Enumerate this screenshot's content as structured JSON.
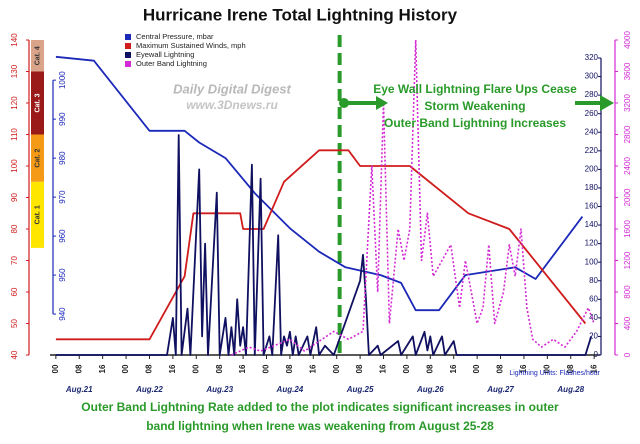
{
  "chart_data": {
    "type": "line",
    "title": "Hurricane Irene Total Lightning History",
    "xlim": [
      -2,
      186
    ],
    "xticks": [
      {
        "value": 0,
        "label": "00"
      },
      {
        "value": 8,
        "label": "08"
      },
      {
        "value": 16,
        "label": "16"
      },
      {
        "value": 24,
        "label": "00"
      },
      {
        "value": 32,
        "label": "08"
      },
      {
        "value": 40,
        "label": "16"
      },
      {
        "value": 48,
        "label": "00"
      },
      {
        "value": 56,
        "label": "08"
      },
      {
        "value": 64,
        "label": "16"
      },
      {
        "value": 72,
        "label": "00"
      },
      {
        "value": 80,
        "label": "08"
      },
      {
        "value": 88,
        "label": "16"
      },
      {
        "value": 96,
        "label": "00"
      },
      {
        "value": 104,
        "label": "08"
      },
      {
        "value": 112,
        "label": "16"
      },
      {
        "value": 120,
        "label": "00"
      },
      {
        "value": 128,
        "label": "08"
      },
      {
        "value": 136,
        "label": "16"
      },
      {
        "value": 144,
        "label": "00"
      },
      {
        "value": 152,
        "label": "08"
      },
      {
        "value": 160,
        "label": "16"
      },
      {
        "value": 168,
        "label": "00"
      },
      {
        "value": 176,
        "label": "08"
      },
      {
        "value": 184,
        "label": "16"
      }
    ],
    "date_labels": [
      {
        "value": 8,
        "label": "Aug.21"
      },
      {
        "value": 32,
        "label": "Aug.22"
      },
      {
        "value": 56,
        "label": "Aug.23"
      },
      {
        "value": 80,
        "label": "Aug.24"
      },
      {
        "value": 104,
        "label": "Aug.25"
      },
      {
        "value": 128,
        "label": "Aug.26"
      },
      {
        "value": 152,
        "label": "Aug.27"
      },
      {
        "value": 176,
        "label": "Aug.28"
      }
    ],
    "ylim": [
      40,
      140
    ],
    "yticks": [
      40,
      50,
      60,
      70,
      80,
      90,
      100,
      110,
      120,
      130,
      140
    ],
    "y2lim": [
      0,
      339.4
    ],
    "y2ticks": [
      0,
      20,
      40,
      60,
      80,
      100,
      120,
      140,
      160,
      180,
      200,
      220,
      240,
      260,
      280,
      300,
      320
    ],
    "y3lim": [
      929.5,
      1010.3
    ],
    "y3ticks": [
      940,
      950,
      960,
      970,
      980,
      990,
      1000
    ],
    "y4lim": [
      0,
      4000
    ],
    "y4ticks": [
      0,
      400,
      800,
      1200,
      1600,
      2000,
      2400,
      2800,
      3200,
      3600,
      4000
    ],
    "category_bands": [
      {
        "label": "Cat. 1",
        "from": 74,
        "to": 95,
        "color": "#ffe600"
      },
      {
        "label": "Cat. 2",
        "from": 95,
        "to": 110,
        "color": "#f59a16"
      },
      {
        "label": "Cat. 3",
        "from": 110,
        "to": 130,
        "color": "#9a1a1a"
      },
      {
        "label": "Cat. 4",
        "from": 130,
        "to": 140,
        "color": "#d9a48a"
      }
    ],
    "series": [
      {
        "name": "Central Pressure, mbar",
        "color": "#1c28b8",
        "axis": "y3",
        "dash": false,
        "x": [
          0,
          13,
          32,
          44,
          49,
          58,
          68,
          80,
          90,
          99,
          111,
          118,
          123,
          131,
          140,
          157,
          164,
          180
        ],
        "values": [
          1006,
          1005,
          987,
          987,
          984,
          980,
          971,
          962,
          956,
          952,
          950,
          948,
          941,
          941,
          950,
          952,
          949,
          965
        ]
      },
      {
        "name": "Maximum Sustained Winds, mph",
        "color": "#d01c1c",
        "axis": "y",
        "dash": false,
        "x": [
          0,
          32,
          44,
          47,
          63,
          64,
          71,
          78,
          90,
          100,
          104,
          121,
          141,
          155,
          181
        ],
        "values": [
          45,
          45,
          65,
          85,
          85,
          80,
          80,
          95,
          105,
          105,
          100,
          100,
          85,
          80,
          50
        ]
      },
      {
        "name": "Eyewall Lightning",
        "color": "#101060",
        "axis": "y2",
        "dash": false,
        "x": [
          0,
          38,
          40,
          41,
          42,
          43,
          45,
          46,
          49,
          50,
          51,
          52,
          55,
          56,
          58,
          59,
          60,
          61,
          62,
          63,
          64,
          65,
          67,
          68,
          70,
          71,
          73,
          74,
          76,
          77,
          78,
          79,
          80,
          81,
          82,
          83,
          86,
          87,
          89,
          90,
          92,
          95,
          104,
          105,
          106,
          107,
          110,
          111,
          117,
          118,
          122,
          123,
          126,
          127,
          128,
          129,
          132,
          133,
          136,
          137,
          181,
          183
        ],
        "values": [
          0,
          0,
          40,
          0,
          237,
          0,
          50,
          0,
          200,
          20,
          120,
          0,
          175,
          0,
          40,
          0,
          30,
          0,
          60,
          10,
          30,
          0,
          205,
          0,
          190,
          0,
          20,
          0,
          129,
          0,
          20,
          10,
          25,
          0,
          20,
          0,
          20,
          0,
          30,
          0,
          10,
          0,
          80,
          108,
          60,
          0,
          10,
          0,
          15,
          0,
          20,
          0,
          25,
          5,
          20,
          0,
          20,
          0,
          15,
          0,
          0,
          20
        ]
      },
      {
        "name": "Outer Band Lightning",
        "color": "#d42ad4",
        "axis": "y4",
        "dash": true,
        "x": [
          60,
          66,
          70,
          80,
          85,
          95,
          100,
          105,
          108,
          110,
          112,
          114,
          117,
          119,
          121,
          123,
          125,
          127,
          129,
          132,
          135,
          138,
          140,
          142,
          144,
          146,
          148,
          150,
          153,
          155,
          157,
          159,
          161,
          163,
          166,
          170,
          174,
          178,
          182,
          184
        ],
        "values": [
          0,
          100,
          50,
          200,
          50,
          300,
          200,
          300,
          2400,
          800,
          3200,
          400,
          1600,
          1200,
          1600,
          4000,
          1200,
          1800,
          1000,
          1200,
          1400,
          600,
          1200,
          800,
          400,
          600,
          1400,
          400,
          800,
          1400,
          1000,
          1600,
          600,
          200,
          100,
          200,
          100,
          300,
          600,
          400
        ]
      }
    ],
    "event_line_x": 97,
    "annotations": [
      "Eye Wall Lightning Flare Ups Cease",
      "Storm Weakening",
      "Outer Band Lightning Increases"
    ],
    "watermark": [
      "Daily Digital Digest",
      "www.3Dnews.ru"
    ],
    "units_note": "Lightning Units: Flashes/hour",
    "caption": [
      "Outer Band Lightning Rate added to the plot indicates significant increases in outer",
      "band lightning when Irene was weakening from August 25-28"
    ]
  }
}
